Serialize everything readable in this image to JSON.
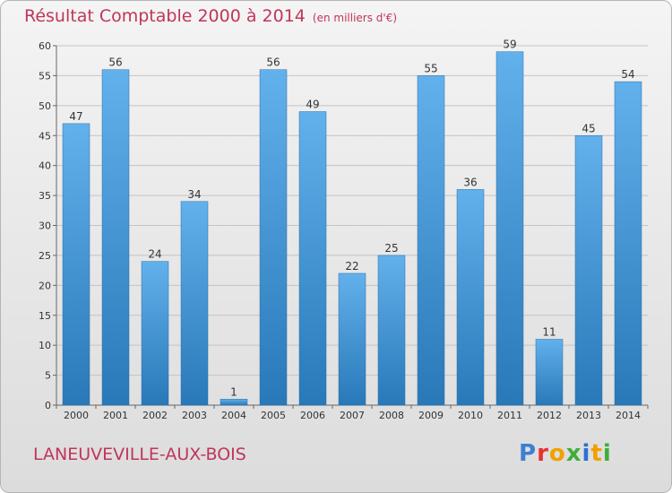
{
  "title": "Résultat Comptable 2000 à 2014",
  "subtitle": "(en milliers d'€)",
  "city": "LANEUVEVILLE-AUX-BOIS",
  "logo": [
    "P",
    "r",
    "o",
    "x",
    "i",
    "t",
    "i"
  ],
  "colors": {
    "title": "#c0355a",
    "bar_top": "#62b1ec",
    "bar_bottom": "#2978b8",
    "logo": [
      "#3d7fd0",
      "#e8312f",
      "#f2a000",
      "#3fae3a",
      "#2f6fd6",
      "#f2a000",
      "#3fae3a"
    ]
  },
  "chart_data": {
    "type": "bar",
    "categories": [
      "2000",
      "2001",
      "2002",
      "2003",
      "2004",
      "2005",
      "2006",
      "2007",
      "2008",
      "2009",
      "2010",
      "2011",
      "2012",
      "2013",
      "2014"
    ],
    "values": [
      47,
      56,
      24,
      34,
      1,
      56,
      49,
      22,
      25,
      55,
      36,
      59,
      11,
      45,
      54
    ],
    "ylim": [
      0,
      60
    ],
    "yticks": [
      0,
      5,
      10,
      15,
      20,
      25,
      30,
      35,
      40,
      45,
      50,
      55,
      60
    ],
    "grid": true,
    "xlabel": "",
    "ylabel": ""
  }
}
